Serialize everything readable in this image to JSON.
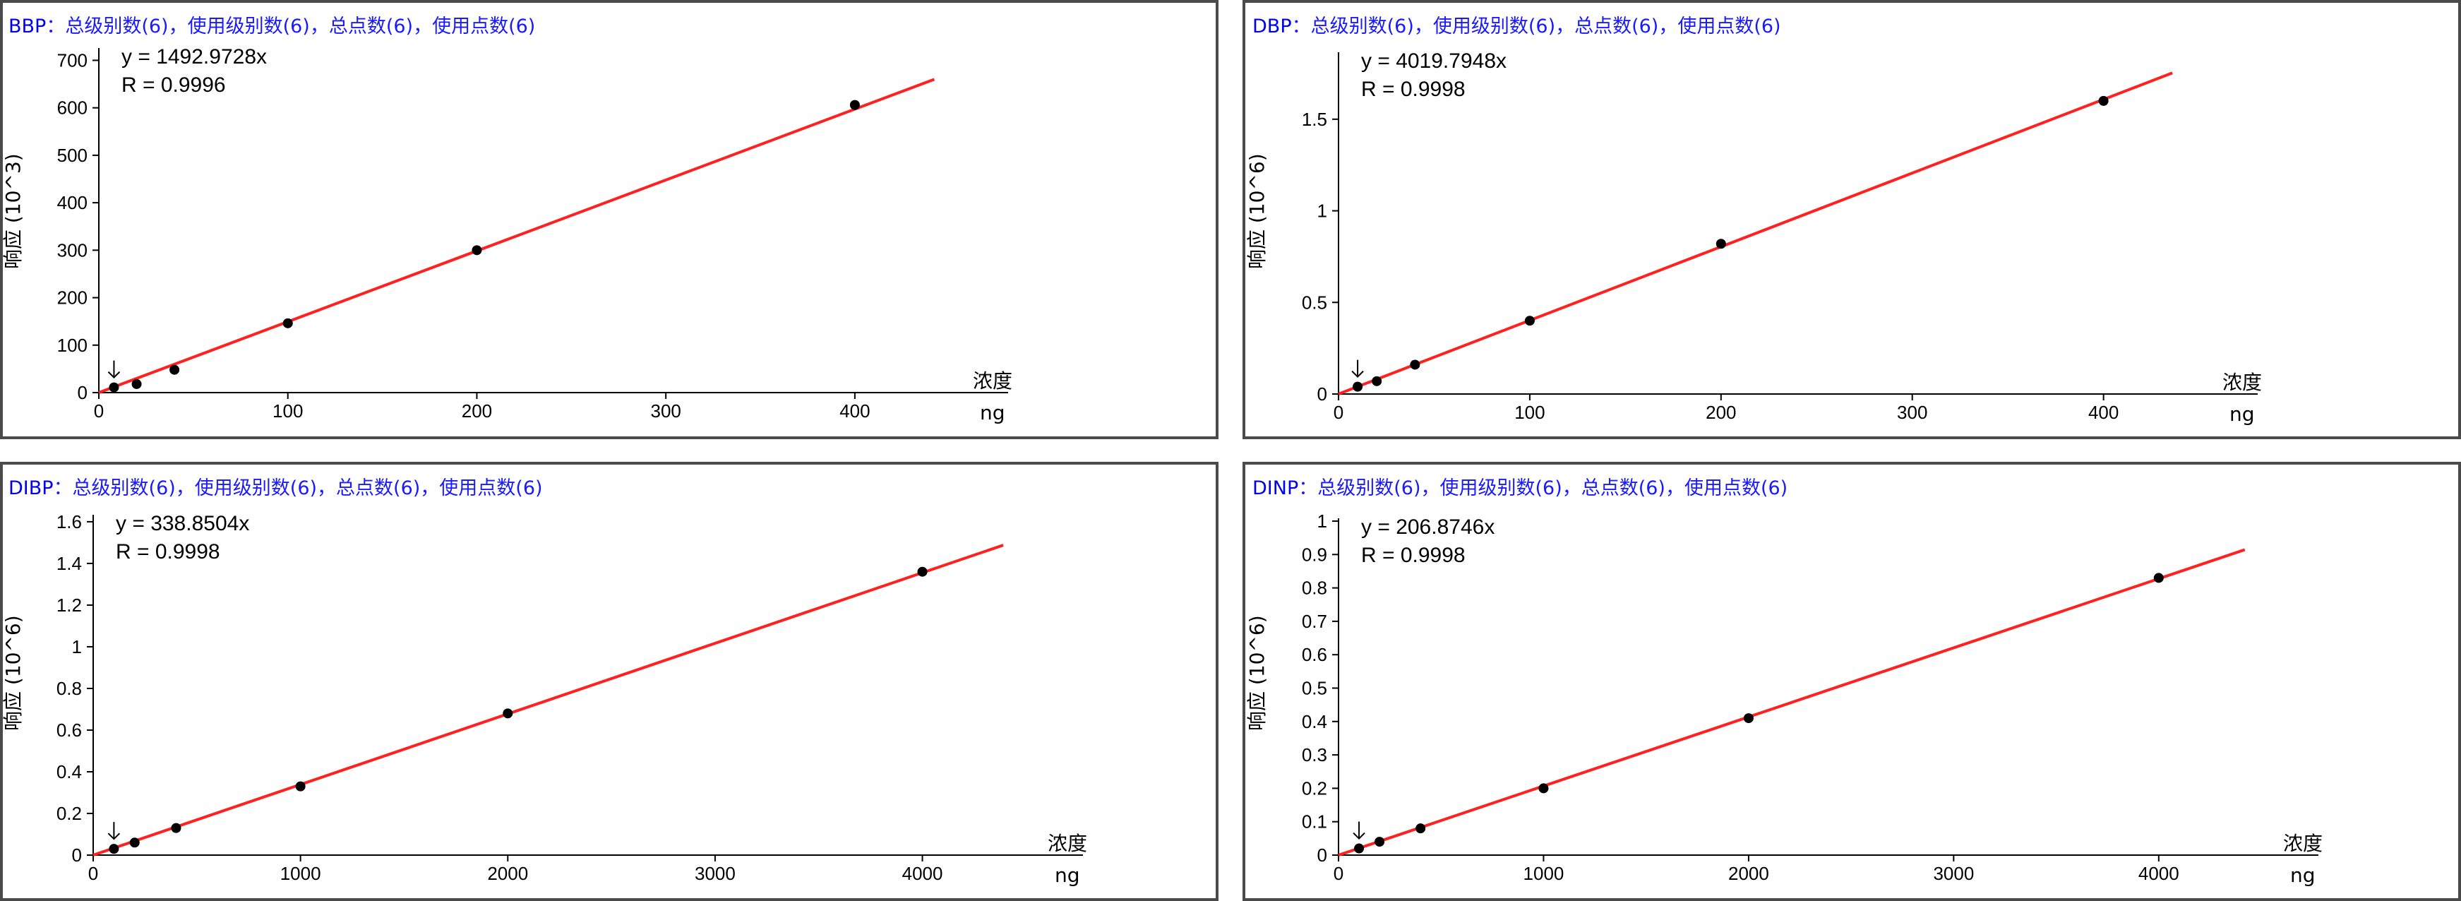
{
  "colors": {
    "title_name": "#0000ee",
    "title_info": "#1a1aff",
    "fit_line": "#ff2020",
    "points": "#000000",
    "axis": "#000000"
  },
  "chart_data": [
    {
      "type": "scatter",
      "title": "BBP",
      "subtitle": "：总级别数(6)，使用级别数(6)，总点数(6)，使用点数(6)",
      "equation": "y = 1492.9728x",
      "r_value": "R = 0.9996",
      "xlabel": "浓度",
      "xunit": "ng",
      "ylabel": "响应 (10^3)",
      "xlim": [
        0,
        440
      ],
      "ylim": [
        0,
        720
      ],
      "xticks": [
        0,
        100,
        200,
        300,
        400
      ],
      "xtick_labels": [
        "0",
        "100",
        "200",
        "300",
        "400"
      ],
      "yticks": [
        0,
        100,
        200,
        300,
        400,
        500,
        600,
        700
      ],
      "ytick_labels": [
        "0",
        "100",
        "200",
        "300",
        "400",
        "500",
        "600",
        "700"
      ],
      "slope": 1.4929728,
      "fit_range": [
        0,
        442
      ],
      "x": [
        8,
        20,
        40,
        100,
        200,
        400
      ],
      "y": [
        11,
        18,
        48,
        146,
        300,
        606
      ],
      "marker_index": 0,
      "grid": false
    },
    {
      "type": "scatter",
      "title": "DBP",
      "subtitle": "：总级别数(6)，使用级别数(6)，总点数(6)，使用点数(6)",
      "equation": "y = 4019.7948x",
      "r_value": "R = 0.9998",
      "xlabel": "浓度",
      "xunit": "ng",
      "ylabel": "响应 (10^6)",
      "xlim": [
        0,
        440
      ],
      "ylim": [
        0,
        1.85
      ],
      "xticks": [
        0,
        100,
        200,
        300,
        400
      ],
      "xtick_labels": [
        "0",
        "100",
        "200",
        "300",
        "400"
      ],
      "yticks": [
        0,
        0.5,
        1,
        1.5
      ],
      "ytick_labels": [
        "0",
        "0.5",
        "1",
        "1.5"
      ],
      "slope": 0.0040197948,
      "fit_range": [
        0,
        436
      ],
      "x": [
        10,
        20,
        40,
        100,
        200,
        400
      ],
      "y": [
        0.04,
        0.07,
        0.16,
        0.4,
        0.82,
        1.6
      ],
      "marker_index": 0,
      "grid": false
    },
    {
      "type": "scatter",
      "title": "DIBP",
      "subtitle": "：总级别数(6)，使用级别数(6)，总点数(6)，使用点数(6)",
      "equation": "y = 338.8504x",
      "r_value": "R = 0.9998",
      "xlabel": "浓度",
      "xunit": "ng",
      "ylabel": "响应 (10^6)",
      "xlim": [
        0,
        4400
      ],
      "ylim": [
        0,
        1.62
      ],
      "xticks": [
        0,
        1000,
        2000,
        3000,
        4000
      ],
      "xtick_labels": [
        "0",
        "1000",
        "2000",
        "3000",
        "4000"
      ],
      "yticks": [
        0,
        0.2,
        0.4,
        0.6,
        0.8,
        1.0,
        1.2,
        1.4,
        1.6
      ],
      "ytick_labels": [
        "0",
        "0.2",
        "0.4",
        "0.6",
        "0.8",
        "1",
        "1.2",
        "1.4",
        "1.6"
      ],
      "slope": 0.0003388504,
      "fit_range": [
        0,
        4390
      ],
      "x": [
        100,
        200,
        400,
        1000,
        2000,
        4000
      ],
      "y": [
        0.03,
        0.06,
        0.13,
        0.33,
        0.68,
        1.36
      ],
      "marker_index": 0,
      "grid": false
    },
    {
      "type": "scatter",
      "title": "DINP",
      "subtitle": "：总级别数(6)，使用级别数(6)，总点数(6)，使用点数(6)",
      "equation": "y = 206.8746x",
      "r_value": "R = 0.9998",
      "xlabel": "浓度",
      "xunit": "ng",
      "ylabel": "响应 (10^6)",
      "xlim": [
        0,
        4400
      ],
      "ylim": [
        0,
        1.0
      ],
      "xticks": [
        0,
        1000,
        2000,
        3000,
        4000
      ],
      "xtick_labels": [
        "0",
        "1000",
        "2000",
        "3000",
        "4000"
      ],
      "yticks": [
        0,
        0.1,
        0.2,
        0.3,
        0.4,
        0.5,
        0.6,
        0.7,
        0.8,
        0.9,
        1.0
      ],
      "ytick_labels": [
        "0",
        "0.1",
        "0.2",
        "0.3",
        "0.4",
        "0.5",
        "0.6",
        "0.7",
        "0.8",
        "0.9",
        "1"
      ],
      "slope": 0.0002068746,
      "fit_range": [
        0,
        4420
      ],
      "x": [
        100,
        200,
        400,
        1000,
        2000,
        4000
      ],
      "y": [
        0.02,
        0.04,
        0.08,
        0.2,
        0.41,
        0.83
      ],
      "marker_index": 0,
      "grid": false
    }
  ]
}
